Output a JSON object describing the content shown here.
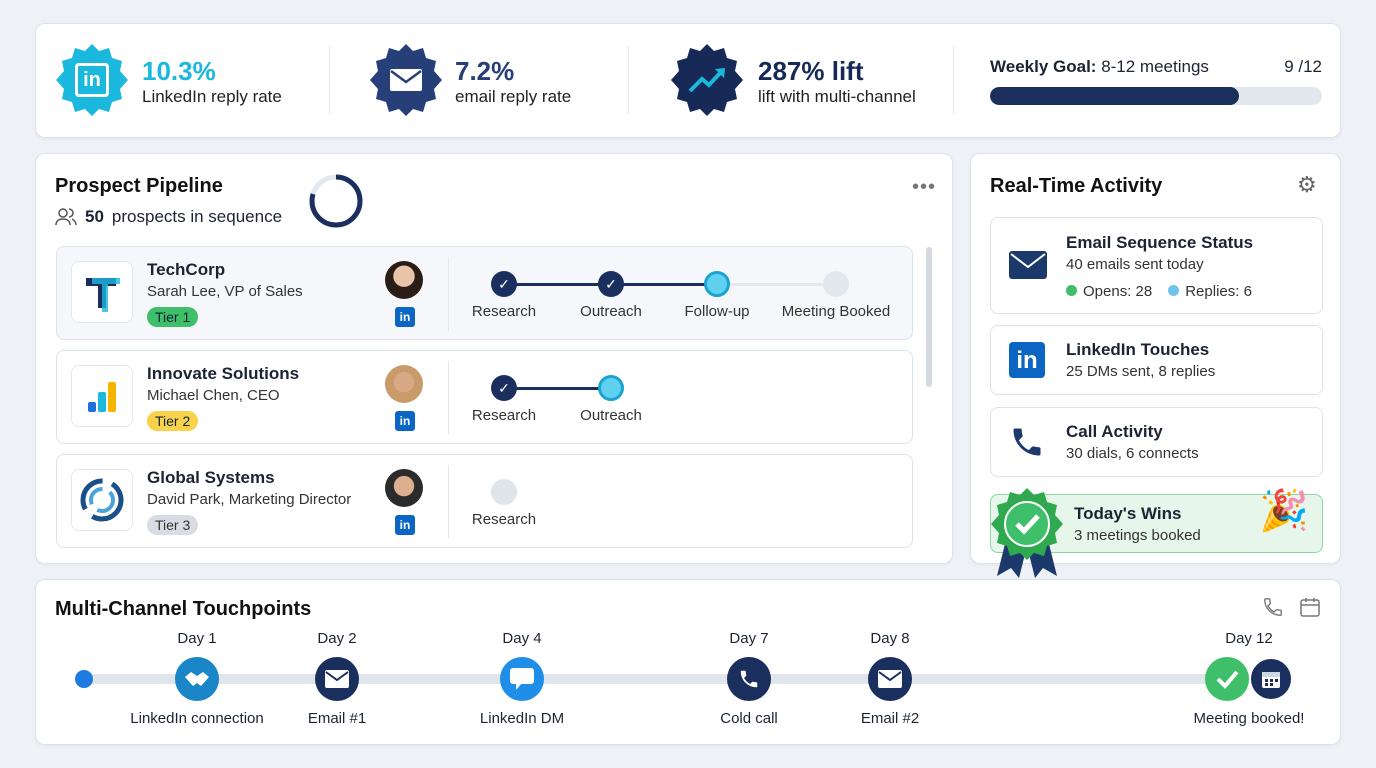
{
  "stats": {
    "linkedin": {
      "value": "10.3%",
      "label": "LinkedIn reply rate",
      "color": "#1bb8de",
      "icon": "linkedin-icon"
    },
    "email": {
      "value": "7.2%",
      "label": "email reply rate",
      "color": "#263f78",
      "icon": "envelope-icon"
    },
    "lift": {
      "value": "287% lift",
      "label": "lift with multi-channel",
      "color": "#172a57",
      "icon": "trend-up-icon"
    },
    "goal": {
      "label": "Weekly Goal:",
      "value": "8-12 meetings",
      "count": "9 /12",
      "progress": 0.75
    }
  },
  "pipeline": {
    "title": "Prospect Pipeline",
    "count": "50",
    "count_suffix": "prospects in sequence",
    "prospects": [
      {
        "company": "TechCorp",
        "contact": "Sarah Lee, VP of Sales",
        "tier": "Tier 1",
        "tier_color": "#3fbf6a",
        "steps": [
          "Research",
          "Outreach",
          "Follow-up",
          "Meeting Booked"
        ]
      },
      {
        "company": "Innovate Solutions",
        "contact": "Michael Chen, CEO",
        "tier": "Tier 2",
        "tier_color": "#f8d24a",
        "steps": [
          "Research",
          "Outreach"
        ]
      },
      {
        "company": "Global Systems",
        "contact": "David Park, Marketing Director",
        "tier": "Tier 3",
        "tier_color": "#d9dde3",
        "steps": [
          "Research"
        ]
      }
    ],
    "li_label": "in"
  },
  "activity": {
    "title": "Real-Time Activity",
    "email": {
      "title": "Email Sequence Status",
      "sub": "40 emails sent today",
      "opens": "Opens: 28",
      "replies": "Replies: 6"
    },
    "linkedin": {
      "title": "LinkedIn Touches",
      "sub": "25 DMs sent, 8 replies"
    },
    "call": {
      "title": "Call Activity",
      "sub": "30 dials, 6 connects"
    },
    "wins": {
      "title": "Today's Wins",
      "sub": "3 meetings booked"
    }
  },
  "touchpoints": {
    "title": "Multi-Channel Touchpoints",
    "items": [
      {
        "day": "Day 1",
        "label": "LinkedIn connection",
        "icon": "handshake-icon",
        "color": "#1a86c7"
      },
      {
        "day": "Day 2",
        "label": "Email #1",
        "icon": "envelope-icon",
        "color": "#1b2f5e"
      },
      {
        "day": "Day 4",
        "label": "LinkedIn DM",
        "icon": "chat-icon",
        "color": "#1e8ee8"
      },
      {
        "day": "Day 7",
        "label": "Cold call",
        "icon": "phone-icon",
        "color": "#1b2f5e"
      },
      {
        "day": "Day 8",
        "label": "Email #2",
        "icon": "envelope-icon",
        "color": "#1b2f5e"
      },
      {
        "day": "Day 12",
        "label": "Meeting booked!",
        "icon": "check-calendar-icon",
        "color": "#3fbf6a"
      }
    ]
  }
}
